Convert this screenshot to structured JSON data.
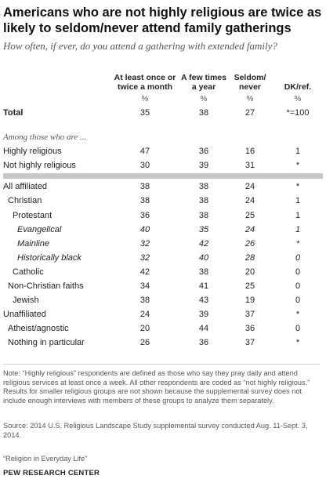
{
  "title": "Americans who are not highly religious are twice as likely to seldom/never attend family gatherings",
  "subtitle": "How often, if ever, do you attend a gathering with extended family?",
  "note": "Note: “Highly religious” respondents are defined as those who say they pray daily and attend religious services at least once a week. All other respondents are coded as “not highly religious.” Results for smaller religious groups are not shown because the supplemental survey does not include enough interviews with members of these groups to analyze them separately.",
  "source": "Source: 2014 U.S. Religious Landscape Study supplemental survey conducted Aug. 11-Sept. 3, 2014.",
  "report": "“Religion in Everyday Life”",
  "brand": "PEW RESEARCH CENTER",
  "chart_data": {
    "type": "table",
    "columns": [
      "At least once or twice a month",
      "A few times a year",
      "Seldom/ never",
      "DK/ref."
    ],
    "unit_row": [
      "%",
      "%",
      "%",
      "%"
    ],
    "section_label": "Among those who are ...",
    "rows": [
      {
        "label": "Total",
        "values": [
          "35",
          "38",
          "27",
          "*=100"
        ]
      },
      {
        "label": "Highly religious",
        "values": [
          "47",
          "36",
          "16",
          "1"
        ]
      },
      {
        "label": "Not highly religious",
        "values": [
          "30",
          "39",
          "31",
          "*"
        ]
      },
      {
        "label": "All affiliated",
        "values": [
          "38",
          "38",
          "24",
          "*"
        ]
      },
      {
        "label": "Christian",
        "values": [
          "38",
          "38",
          "24",
          "1"
        ]
      },
      {
        "label": "Protestant",
        "values": [
          "36",
          "38",
          "25",
          "1"
        ]
      },
      {
        "label": "Evangelical",
        "values": [
          "40",
          "35",
          "24",
          "1"
        ]
      },
      {
        "label": "Mainline",
        "values": [
          "32",
          "42",
          "26",
          "*"
        ]
      },
      {
        "label": "Historically black",
        "values": [
          "32",
          "40",
          "28",
          "0"
        ]
      },
      {
        "label": "Catholic",
        "values": [
          "42",
          "38",
          "20",
          "0"
        ]
      },
      {
        "label": "Non-Christian faiths",
        "values": [
          "34",
          "41",
          "25",
          "0"
        ]
      },
      {
        "label": "Jewish",
        "values": [
          "38",
          "43",
          "19",
          "0"
        ]
      },
      {
        "label": "Unaffiliated",
        "values": [
          "24",
          "39",
          "37",
          "*"
        ]
      },
      {
        "label": "Atheist/agnostic",
        "values": [
          "20",
          "44",
          "36",
          "0"
        ]
      },
      {
        "label": "Nothing in particular",
        "values": [
          "26",
          "36",
          "37",
          "*"
        ]
      }
    ]
  }
}
